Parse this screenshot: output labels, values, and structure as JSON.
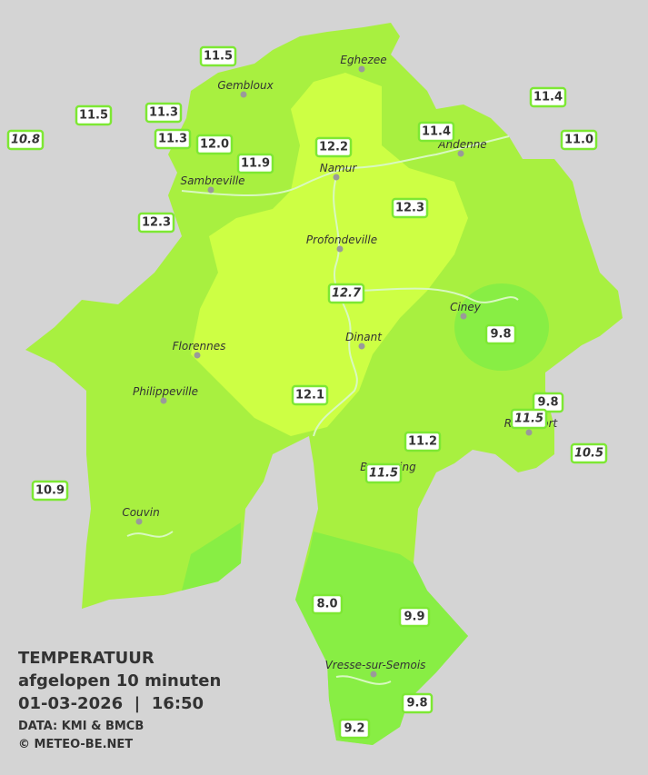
{
  "header": {
    "title": "TEMPERATUUR",
    "subtitle": "afgelopen 10 minuten",
    "datetime": "01-03-2026  |  16:50",
    "source": "DATA: KMI & BMCB",
    "credit": "© METEO-BE.NET"
  },
  "cities": [
    "Eghezee",
    "Gembloux",
    "Andenne",
    "Namur",
    "Sambreville",
    "Profondeville",
    "Ciney",
    "Dinant",
    "Florennes",
    "Philippeville",
    "Rochefort",
    "Beauraing",
    "Couvin",
    "Vresse-sur-Semois"
  ],
  "readings": [
    {
      "temp": "11.5",
      "italic": false
    },
    {
      "temp": "11.3",
      "italic": false
    },
    {
      "temp": "11.5",
      "italic": false
    },
    {
      "temp": "10.8",
      "italic": true
    },
    {
      "temp": "11.3",
      "italic": false
    },
    {
      "temp": "12.0",
      "italic": false
    },
    {
      "temp": "11.9",
      "italic": false
    },
    {
      "temp": "12.2",
      "italic": false
    },
    {
      "temp": "11.4",
      "italic": false
    },
    {
      "temp": "11.4",
      "italic": false
    },
    {
      "temp": "11.0",
      "italic": false
    },
    {
      "temp": "12.3",
      "italic": false
    },
    {
      "temp": "12.3",
      "italic": false
    },
    {
      "temp": "12.7",
      "italic": true
    },
    {
      "temp": "9.8",
      "italic": false
    },
    {
      "temp": "12.1",
      "italic": false
    },
    {
      "temp": "9.8",
      "italic": false
    },
    {
      "temp": "11.5",
      "italic": true
    },
    {
      "temp": "11.2",
      "italic": false
    },
    {
      "temp": "10.5",
      "italic": true
    },
    {
      "temp": "11.5",
      "italic": true
    },
    {
      "temp": "10.9",
      "italic": false
    },
    {
      "temp": "8.0",
      "italic": false
    },
    {
      "temp": "9.9",
      "italic": false
    },
    {
      "temp": "9.8",
      "italic": false
    },
    {
      "temp": "9.2",
      "italic": false
    }
  ]
}
